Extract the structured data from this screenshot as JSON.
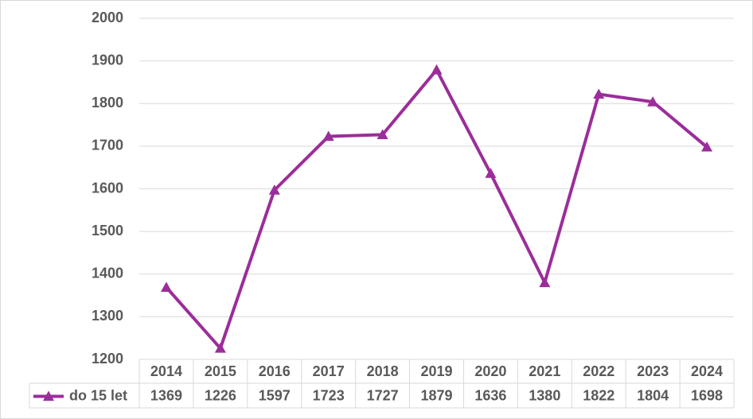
{
  "chart_data": {
    "type": "line",
    "categories": [
      "2014",
      "2015",
      "2016",
      "2017",
      "2018",
      "2019",
      "2020",
      "2021",
      "2022",
      "2023",
      "2024"
    ],
    "series": [
      {
        "name": "do 15 let",
        "color": "#9b2d9b",
        "values": [
          1369,
          1226,
          1597,
          1723,
          1727,
          1879,
          1636,
          1380,
          1822,
          1804,
          1698
        ]
      }
    ],
    "ylim": [
      1200,
      2000
    ],
    "yticks": [
      1200,
      1300,
      1400,
      1500,
      1600,
      1700,
      1800,
      1900,
      2000
    ],
    "grid": true,
    "marker": "triangle",
    "data_table": true
  }
}
